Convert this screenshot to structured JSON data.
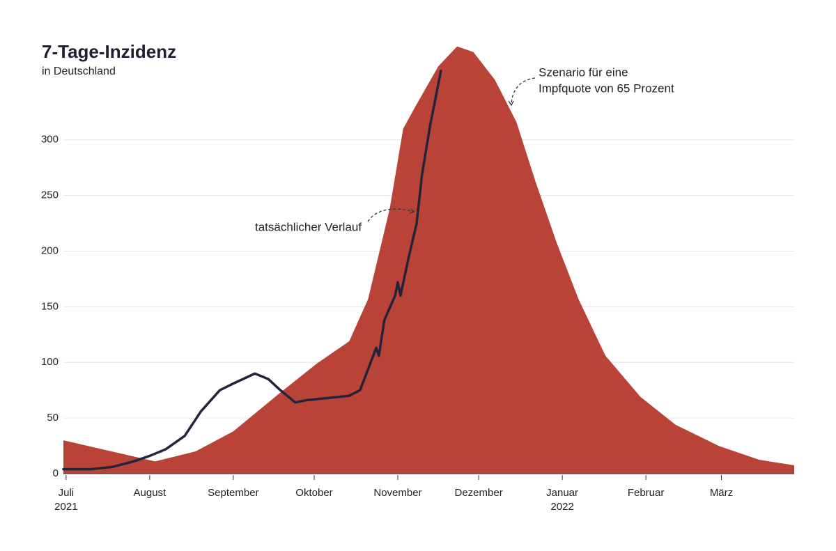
{
  "chart_data": {
    "type": "area_line",
    "title": "7-Tage-Inzidenz",
    "subtitle": "in Deutschland",
    "xlim": [
      -1,
      270
    ],
    "xticks": [
      {
        "value": 0,
        "label": "Juli"
      },
      {
        "value": 31,
        "label": "August"
      },
      {
        "value": 62,
        "label": "September"
      },
      {
        "value": 92,
        "label": "Oktober"
      },
      {
        "value": 123,
        "label": "November"
      },
      {
        "value": 153,
        "label": "Dezember"
      },
      {
        "value": 184,
        "label": "Januar"
      },
      {
        "value": 215,
        "label": "Februar"
      },
      {
        "value": 243,
        "label": "März"
      }
    ],
    "year_labels": [
      {
        "value": 0,
        "label": "2021"
      },
      {
        "value": 184,
        "label": "2022"
      }
    ],
    "ylim": [
      0,
      390
    ],
    "yticks": [
      0,
      50,
      100,
      150,
      200,
      250,
      300
    ],
    "grid": true,
    "series": [
      {
        "kind": "area",
        "color": "#b94336",
        "x": [
          -1,
          33,
          48,
          62,
          79,
          93,
          105,
          112,
          120,
          125,
          130,
          138,
          145,
          151,
          159,
          167,
          174,
          182,
          190,
          200,
          213,
          226,
          242,
          257,
          270
        ],
        "values": [
          30,
          11,
          20,
          38,
          72,
          99,
          119,
          157,
          238,
          310,
          332,
          366,
          384,
          379,
          354,
          316,
          263,
          207,
          157,
          106,
          69,
          44,
          25,
          12.5,
          7.5
        ]
      },
      {
        "kind": "line",
        "color": "#23233a",
        "x": [
          -1,
          9,
          17,
          25,
          31,
          37,
          44,
          50,
          57,
          62,
          70,
          75,
          79,
          85,
          89,
          97,
          105,
          109,
          112,
          115,
          116,
          118,
          122,
          123,
          124,
          127,
          130,
          132,
          135,
          139
        ],
        "values": [
          4,
          4,
          6,
          11,
          16,
          22,
          34,
          56,
          75,
          81,
          90,
          85,
          76,
          64,
          66,
          68,
          70,
          75,
          94,
          113,
          106,
          138,
          160,
          172,
          160,
          194,
          225,
          269,
          313,
          362
        ]
      }
    ],
    "annotations": [
      {
        "lines": [
          "tatsächlicher Verlauf"
        ]
      },
      {
        "lines": [
          "Szenario für eine",
          "Impfquote von 65 Prozent"
        ]
      }
    ]
  }
}
